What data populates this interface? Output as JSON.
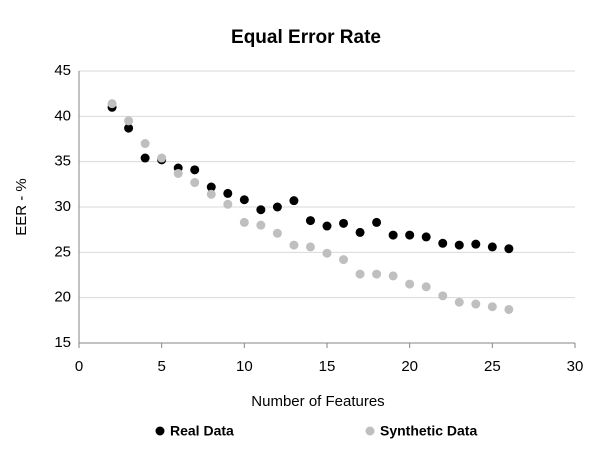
{
  "chart_data": {
    "type": "scatter",
    "title": "Equal Error Rate",
    "x_label": "Number of Features",
    "y_label": "EER - %",
    "x": [
      2,
      3,
      4,
      5,
      6,
      7,
      8,
      9,
      10,
      11,
      12,
      13,
      14,
      15,
      16,
      17,
      18,
      19,
      20,
      21,
      22,
      23,
      24,
      25,
      26
    ],
    "series": [
      {
        "name": "Real Data",
        "color": "#000000",
        "values": [
          41.0,
          38.7,
          35.4,
          35.2,
          34.3,
          34.1,
          32.2,
          31.5,
          30.8,
          29.7,
          30.0,
          30.7,
          28.5,
          27.9,
          28.2,
          27.2,
          28.3,
          26.9,
          26.9,
          26.7,
          26.0,
          25.8,
          25.9,
          25.6,
          25.4
        ]
      },
      {
        "name": "Synthetic Data",
        "color": "#bfbfbf",
        "values": [
          41.4,
          39.5,
          37.0,
          35.4,
          33.7,
          32.7,
          31.4,
          30.3,
          28.3,
          28.0,
          27.1,
          25.8,
          25.6,
          24.9,
          24.2,
          22.6,
          22.6,
          22.4,
          21.5,
          21.2,
          20.2,
          19.5,
          19.3,
          19.0,
          18.7
        ]
      }
    ],
    "xlim": [
      0,
      30
    ],
    "xticks": [
      0,
      5,
      10,
      15,
      20,
      25,
      30
    ],
    "ylim": [
      15,
      45
    ],
    "yticks": [
      15,
      20,
      25,
      30,
      35,
      40,
      45
    ],
    "grid": true,
    "legend": "bottom"
  }
}
